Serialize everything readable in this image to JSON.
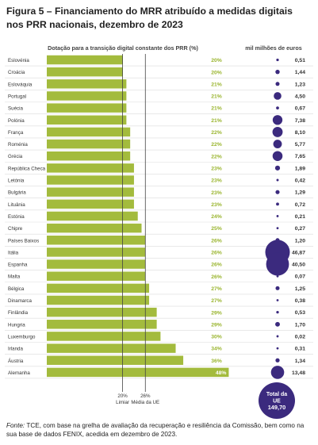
{
  "title": "Figura 5 – Financiamento do MRR atribuído a medidas digitais nos PRR nacionais, dezembro de 2023",
  "source": {
    "label": "Fonte:",
    "text": " TCE, com base na grelha de avaliação da recuperação e resiliência da Comissão, bem como na sua base de dados FENIX, acedida em dezembro de 2023."
  },
  "colors": {
    "bar": "#a3bb3d",
    "bar_label": "#9ab52f",
    "bubble": "#3b2a7e",
    "grid": "#dcdcdc",
    "ref_line": "#444444"
  },
  "chart_data": {
    "type": "bar",
    "orientation": "horizontal",
    "title": "Dotação para a transição digital constante dos PRR (%)",
    "bubble_title": "mil milhões de euros",
    "unit": "%",
    "categories": [
      "Eslovénia",
      "Croácia",
      "Eslováquia",
      "Portugal",
      "Suécia",
      "Polónia",
      "França",
      "Roménia",
      "Grécia",
      "República Checa",
      "Letónia",
      "Bulgária",
      "Lituânia",
      "Estónia",
      "Chipre",
      "Países Baixos",
      "Itália",
      "Espanha",
      "Malta",
      "Bélgica",
      "Dinamarca",
      "Finlândia",
      "Hungria",
      "Luxemburgo",
      "Irlanda",
      "Áustria",
      "Alemanha"
    ],
    "values": [
      20,
      20,
      21,
      21,
      21,
      21,
      22,
      22,
      22,
      23,
      23,
      23,
      23,
      24,
      25,
      26,
      26,
      26,
      26,
      27,
      27,
      29,
      29,
      30,
      34,
      36,
      48
    ],
    "value_labels": [
      "20%",
      "20%",
      "21%",
      "21%",
      "21%",
      "21%",
      "22%",
      "22%",
      "22%",
      "23%",
      "23%",
      "23%",
      "23%",
      "24%",
      "25%",
      "26%",
      "26%",
      "26%",
      "26%",
      "27%",
      "27%",
      "29%",
      "29%",
      "30%",
      "34%",
      "36%",
      "48%"
    ],
    "amounts": [
      0.51,
      1.44,
      1.23,
      4.5,
      0.67,
      7.38,
      8.1,
      5.77,
      7.65,
      1.89,
      0.42,
      1.29,
      0.72,
      0.21,
      0.27,
      1.2,
      46.87,
      40.5,
      0.07,
      1.25,
      0.38,
      0.53,
      1.7,
      0.02,
      0.31,
      1.34,
      13.48
    ],
    "amount_labels": [
      "0,51",
      "1,44",
      "1,23",
      "4,50",
      "0,67",
      "7,38",
      "8,10",
      "5,77",
      "7,65",
      "1,89",
      "0,42",
      "1,29",
      "0,72",
      "0,21",
      "0,27",
      "1,20",
      "46,87",
      "40,50",
      "0,07",
      "1,25",
      "0,38",
      "0,53",
      "1,70",
      "0,02",
      "0,31",
      "1,34",
      "13,48"
    ],
    "xlim": [
      0,
      50
    ],
    "reference_lines": [
      {
        "value": 20,
        "label": "20%",
        "sublabel": "Limiar"
      },
      {
        "value": 26,
        "label": "26%",
        "sublabel": "Média da UE"
      }
    ],
    "total": {
      "label": "Total da UE",
      "value": 149.7,
      "value_label": "149,70"
    }
  }
}
